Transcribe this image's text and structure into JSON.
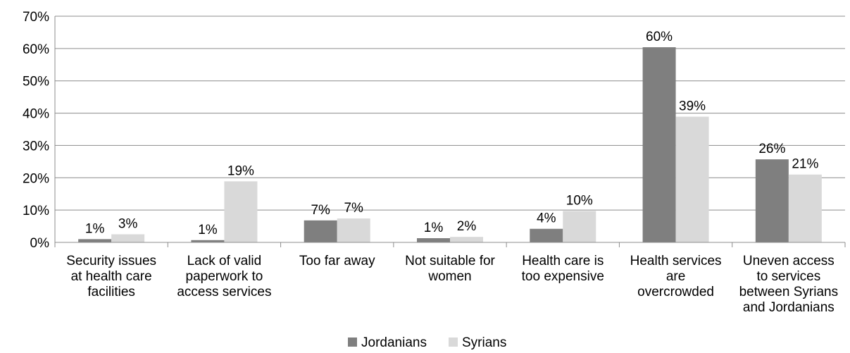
{
  "chart_data": {
    "type": "bar",
    "title": "",
    "xlabel": "",
    "ylabel": "",
    "ylim": [
      0,
      70
    ],
    "yticks": [
      "0%",
      "10%",
      "20%",
      "30%",
      "40%",
      "50%",
      "60%",
      "70%"
    ],
    "grid": true,
    "legend_position": "bottom",
    "categories": [
      [
        "Security issues",
        "at health care",
        "facilities"
      ],
      [
        "Lack of valid",
        "paperwork to",
        "access services"
      ],
      [
        "Too far away"
      ],
      [
        "Not suitable for",
        "women"
      ],
      [
        "Health care is",
        "too expensive"
      ],
      [
        "Health services",
        "are",
        "overcrowded"
      ],
      [
        "Uneven access",
        "to services",
        "between Syrians",
        "and Jordanians"
      ]
    ],
    "series": [
      {
        "name": "Jordanians",
        "color": "#7f7f7f",
        "values": [
          1,
          0.7,
          6.8,
          1.3,
          4.2,
          60.4,
          25.7
        ],
        "labels": [
          "1%",
          "1%",
          "7%",
          "1%",
          "4%",
          "60%",
          "26%"
        ]
      },
      {
        "name": "Syrians",
        "color": "#d9d9d9",
        "values": [
          2.5,
          18.9,
          7.4,
          1.7,
          9.7,
          38.9,
          21
        ],
        "labels": [
          "3%",
          "19%",
          "7%",
          "2%",
          "10%",
          "39%",
          "21%"
        ]
      }
    ]
  }
}
